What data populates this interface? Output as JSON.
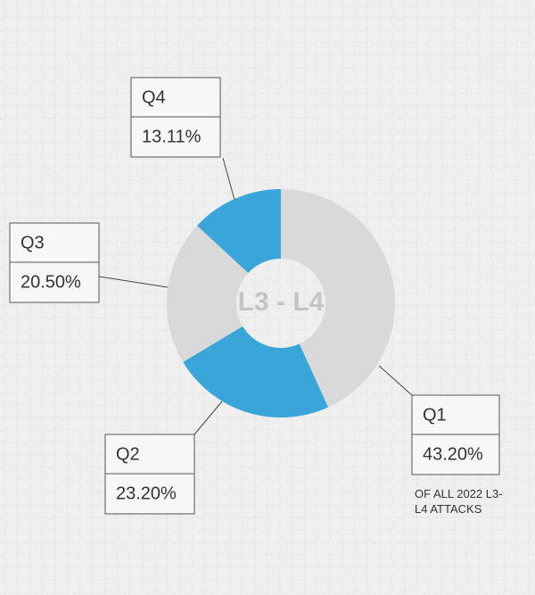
{
  "chart_data": {
    "type": "donut",
    "center_label": "L3 - L4",
    "note": "OF ALL 2022 L3-L4 ATTACKS",
    "categories": [
      "Q1",
      "Q2",
      "Q3",
      "Q4"
    ],
    "values": [
      43.2,
      23.2,
      20.5,
      13.11
    ],
    "value_labels": [
      "43.20%",
      "23.20%",
      "20.50%",
      "13.11%"
    ],
    "colors": [
      "#d9d9d9",
      "#3aa5d8",
      "#d9d9d9",
      "#3aa5d8"
    ]
  }
}
